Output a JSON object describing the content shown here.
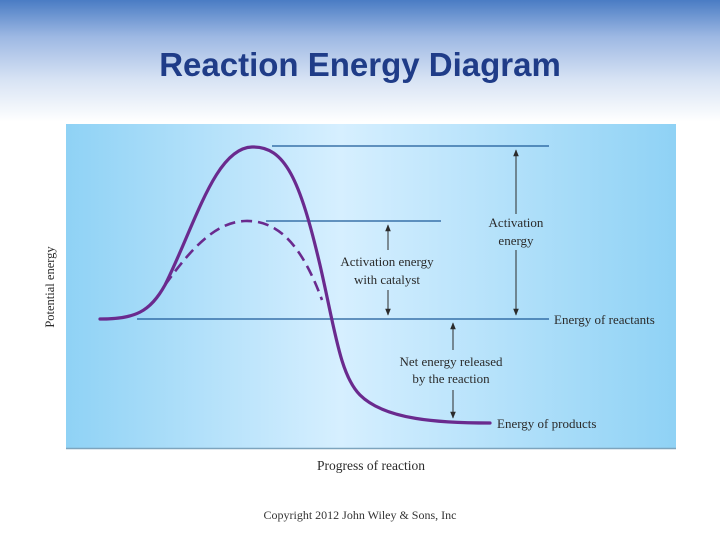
{
  "slide": {
    "title": "Reaction Energy Diagram",
    "copyright": "Copyright 2012 John Wiley & Sons, Inc"
  },
  "diagram": {
    "axis_y_label": "Potential energy",
    "axis_x_label": "Progress of reaction",
    "labels": {
      "activation_energy_line1": "Activation",
      "activation_energy_line2": "energy",
      "catalyst_line1": "Activation energy",
      "catalyst_line2": "with catalyst",
      "energy_of_reactants": "Energy of reactants",
      "net_energy_line1": "Net energy released",
      "net_energy_line2": "by the reaction",
      "energy_of_products": "Energy of products"
    },
    "colors": {
      "curve": "#6a2a8e",
      "levels": "#1c5a98",
      "panel_light": "#d6efff",
      "panel_dark": "#8fd2f5"
    }
  }
}
